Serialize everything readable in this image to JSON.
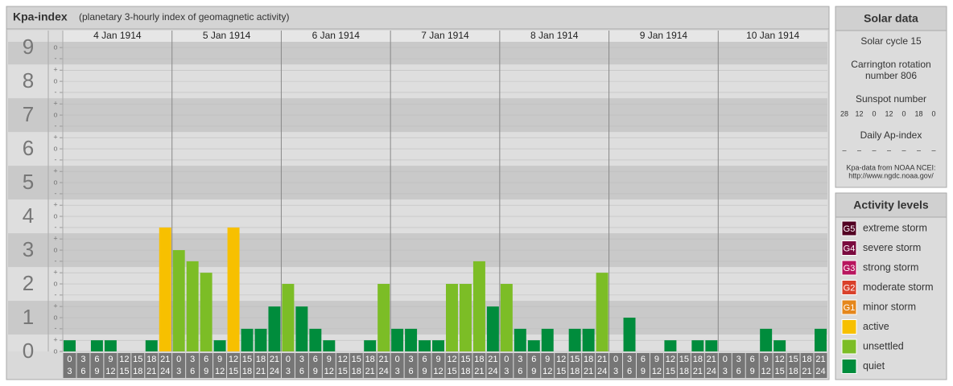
{
  "chart_data": {
    "type": "bar",
    "title": "Kpa-index",
    "subtitle": "(planetary 3-hourly index of geomagnetic activity)",
    "categories": [
      "4 Jan 1914",
      "5 Jan 1914",
      "6 Jan 1914",
      "7 Jan 1914",
      "8 Jan 1914",
      "9 Jan 1914",
      "10 Jan 1914"
    ],
    "intervals": [
      [
        "0",
        "3"
      ],
      [
        "3",
        "6"
      ],
      [
        "6",
        "9"
      ],
      [
        "9",
        "12"
      ],
      [
        "12",
        "15"
      ],
      [
        "15",
        "18"
      ],
      [
        "18",
        "21"
      ],
      [
        "21",
        "24"
      ]
    ],
    "values": [
      [
        0.33,
        0,
        0.33,
        0.33,
        0,
        0,
        0.33,
        3.67
      ],
      [
        3,
        2.67,
        2.33,
        0.33,
        3.67,
        0.67,
        0.67,
        1.33
      ],
      [
        2,
        1.33,
        0.67,
        0.33,
        0,
        0,
        0.33,
        2
      ],
      [
        0.67,
        0.67,
        0.33,
        0.33,
        2,
        2,
        2.67,
        1.33
      ],
      [
        2,
        0.67,
        0.33,
        0.67,
        0,
        0.67,
        0.67,
        2.33
      ],
      [
        0,
        1,
        0,
        0,
        0.33,
        0,
        0.33,
        0.33
      ],
      [
        0,
        0,
        0,
        0.67,
        0.33,
        0,
        0,
        0.67
      ]
    ],
    "colors": [
      [
        "#008c3c",
        "#008c3c",
        "#008c3c",
        "#008c3c",
        "#008c3c",
        "#008c3c",
        "#008c3c",
        "#f7c000"
      ],
      [
        "#7cbd26",
        "#7cbd26",
        "#7cbd26",
        "#008c3c",
        "#f7c000",
        "#008c3c",
        "#008c3c",
        "#008c3c"
      ],
      [
        "#7cbd26",
        "#008c3c",
        "#008c3c",
        "#008c3c",
        "#008c3c",
        "#008c3c",
        "#008c3c",
        "#7cbd26"
      ],
      [
        "#008c3c",
        "#008c3c",
        "#008c3c",
        "#008c3c",
        "#7cbd26",
        "#7cbd26",
        "#7cbd26",
        "#008c3c"
      ],
      [
        "#7cbd26",
        "#008c3c",
        "#008c3c",
        "#008c3c",
        "#008c3c",
        "#008c3c",
        "#008c3c",
        "#7cbd26"
      ],
      [
        "#008c3c",
        "#008c3c",
        "#008c3c",
        "#008c3c",
        "#008c3c",
        "#008c3c",
        "#008c3c",
        "#008c3c"
      ],
      [
        "#008c3c",
        "#008c3c",
        "#008c3c",
        "#008c3c",
        "#008c3c",
        "#008c3c",
        "#008c3c",
        "#008c3c"
      ]
    ],
    "ylim": [
      0,
      9.17
    ],
    "yticks": [
      0,
      1,
      2,
      3,
      4,
      5,
      6,
      7,
      8,
      9
    ],
    "minor_ticks": [
      {
        "value": 0,
        "label": "o"
      },
      {
        "value": 0.33,
        "label": "+"
      },
      {
        "value": 0.67,
        "label": "-"
      },
      {
        "value": 1,
        "label": "o"
      },
      {
        "value": 1.33,
        "label": "+"
      },
      {
        "value": 1.67,
        "label": "-"
      },
      {
        "value": 2,
        "label": "o"
      },
      {
        "value": 2.33,
        "label": "+"
      },
      {
        "value": 2.67,
        "label": "-"
      },
      {
        "value": 3,
        "label": "o"
      },
      {
        "value": 3.33,
        "label": "+"
      },
      {
        "value": 3.67,
        "label": "-"
      },
      {
        "value": 4,
        "label": "o"
      },
      {
        "value": 4.33,
        "label": "+"
      },
      {
        "value": 4.67,
        "label": "-"
      },
      {
        "value": 5,
        "label": "o"
      },
      {
        "value": 5.33,
        "label": "+"
      },
      {
        "value": 5.67,
        "label": "-"
      },
      {
        "value": 6,
        "label": "o"
      },
      {
        "value": 6.33,
        "label": "+"
      },
      {
        "value": 6.67,
        "label": "-"
      },
      {
        "value": 7,
        "label": "o"
      },
      {
        "value": 7.33,
        "label": "+"
      },
      {
        "value": 7.67,
        "label": "-"
      },
      {
        "value": 8,
        "label": "o"
      },
      {
        "value": 8.33,
        "label": "+"
      },
      {
        "value": 8.67,
        "label": "-"
      },
      {
        "value": 9,
        "label": "o"
      }
    ],
    "grid": true
  },
  "solar_data": {
    "title": "Solar data",
    "solar_cycle": "Solar cycle 15",
    "carrington": [
      "Carrington rotation",
      "number 806"
    ],
    "sunspot_title": "Sunspot number",
    "sunspot": [
      28,
      12,
      0,
      12,
      0,
      18,
      0
    ],
    "ap_title": "Daily Ap-index",
    "ap": [
      "–",
      "–",
      "–",
      "–",
      "–",
      "–",
      "–"
    ],
    "note": [
      "Kpa-data from NOAA NCEI:",
      "http://www.ngdc.noaa.gov/"
    ]
  },
  "activity_levels": {
    "title": "Activity levels",
    "items": [
      {
        "badge": "G5",
        "name": "extreme storm",
        "color": "#520022"
      },
      {
        "badge": "G4",
        "name": "severe storm",
        "color": "#7a0a3e"
      },
      {
        "badge": "G3",
        "name": "strong storm",
        "color": "#b8155e"
      },
      {
        "badge": "G2",
        "name": "moderate storm",
        "color": "#d9402a"
      },
      {
        "badge": "G1",
        "name": "minor storm",
        "color": "#e5871c"
      },
      {
        "name": "active",
        "color": "#f7c000"
      },
      {
        "name": "unsettled",
        "color": "#7cbd26"
      },
      {
        "name": "quiet",
        "color": "#008c3c"
      }
    ]
  }
}
